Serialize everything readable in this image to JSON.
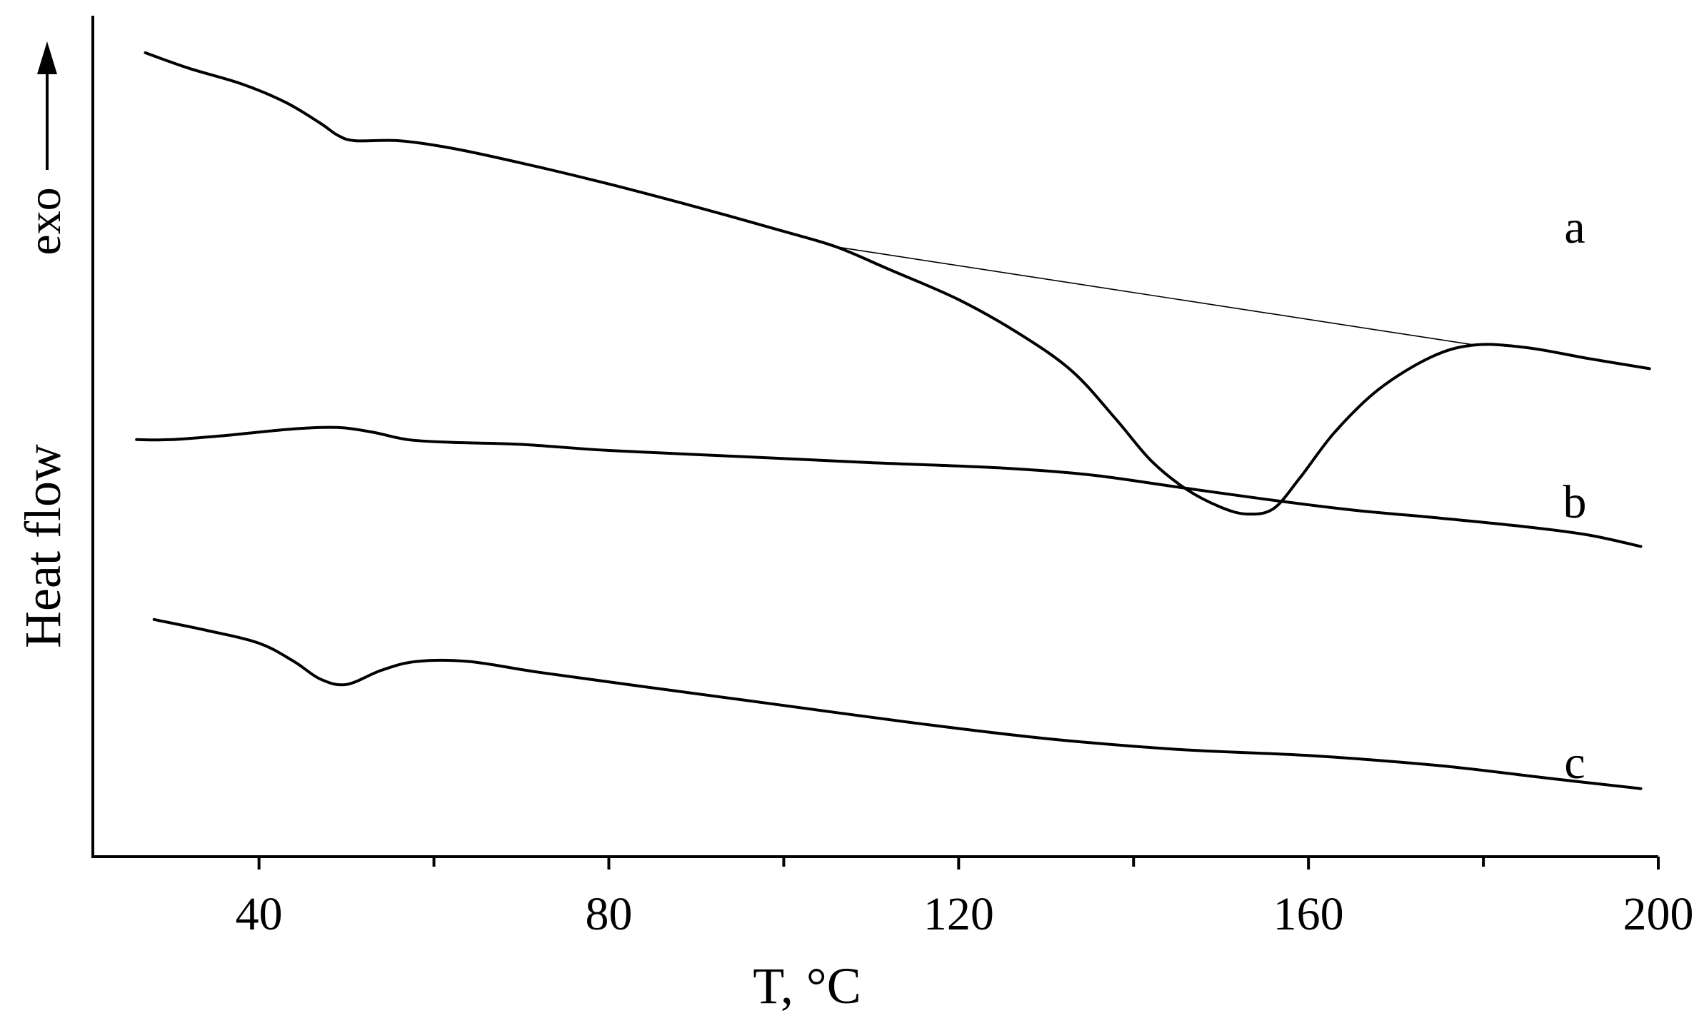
{
  "chart_data": {
    "type": "line",
    "title": "",
    "xlabel": "T, °C",
    "ylabel": "Heat flow",
    "y_direction_label": "exo",
    "xlim": [
      21,
      200
    ],
    "x_ticks_labeled": [
      40,
      80,
      120,
      160,
      200
    ],
    "x_ticks_minor": [
      60,
      100,
      140,
      180
    ],
    "y_ticks": [],
    "grid": false,
    "legend": "none",
    "line_color": "#000000",
    "series": [
      {
        "label": "a",
        "points": [
          [
            27,
            1.0
          ],
          [
            32,
            0.977
          ],
          [
            38,
            0.954
          ],
          [
            43,
            0.927
          ],
          [
            47,
            0.896
          ],
          [
            49,
            0.878
          ],
          [
            51,
            0.87
          ],
          [
            56,
            0.87
          ],
          [
            62,
            0.859
          ],
          [
            70,
            0.837
          ],
          [
            80,
            0.806
          ],
          [
            90,
            0.772
          ],
          [
            100,
            0.736
          ],
          [
            106,
            0.713
          ],
          [
            112,
            0.68
          ],
          [
            120,
            0.635
          ],
          [
            127,
            0.584
          ],
          [
            133,
            0.529
          ],
          [
            138,
            0.458
          ],
          [
            142,
            0.397
          ],
          [
            146,
            0.355
          ],
          [
            150,
            0.328
          ],
          [
            153,
            0.318
          ],
          [
            156,
            0.326
          ],
          [
            159,
            0.371
          ],
          [
            163,
            0.439
          ],
          [
            168,
            0.502
          ],
          [
            174,
            0.55
          ],
          [
            179,
            0.568
          ],
          [
            185,
            0.564
          ],
          [
            192,
            0.548
          ],
          [
            199,
            0.533
          ]
        ]
      },
      {
        "label": "b",
        "points": [
          [
            26,
            0.428
          ],
          [
            30,
            0.428
          ],
          [
            36,
            0.434
          ],
          [
            44,
            0.444
          ],
          [
            49,
            0.446
          ],
          [
            53,
            0.439
          ],
          [
            57,
            0.428
          ],
          [
            62,
            0.424
          ],
          [
            70,
            0.421
          ],
          [
            80,
            0.412
          ],
          [
            95,
            0.403
          ],
          [
            110,
            0.394
          ],
          [
            125,
            0.386
          ],
          [
            135,
            0.376
          ],
          [
            145,
            0.358
          ],
          [
            155,
            0.34
          ],
          [
            165,
            0.324
          ],
          [
            175,
            0.312
          ],
          [
            185,
            0.299
          ],
          [
            192,
            0.287
          ],
          [
            198,
            0.27
          ]
        ]
      },
      {
        "label": "c",
        "points": [
          [
            28,
            0.162
          ],
          [
            34,
            0.146
          ],
          [
            40,
            0.127
          ],
          [
            44,
            0.1
          ],
          [
            47,
            0.074
          ],
          [
            50,
            0.066
          ],
          [
            54,
            0.087
          ],
          [
            58,
            0.1
          ],
          [
            64,
            0.1
          ],
          [
            72,
            0.084
          ],
          [
            85,
            0.061
          ],
          [
            100,
            0.035
          ],
          [
            115,
            0.009
          ],
          [
            130,
            -0.014
          ],
          [
            145,
            -0.03
          ],
          [
            160,
            -0.039
          ],
          [
            175,
            -0.054
          ],
          [
            187,
            -0.072
          ],
          [
            198,
            -0.088
          ]
        ]
      },
      {
        "label": "",
        "points": [
          [
            106,
            0.713
          ],
          [
            179,
            0.568
          ]
        ]
      }
    ]
  }
}
